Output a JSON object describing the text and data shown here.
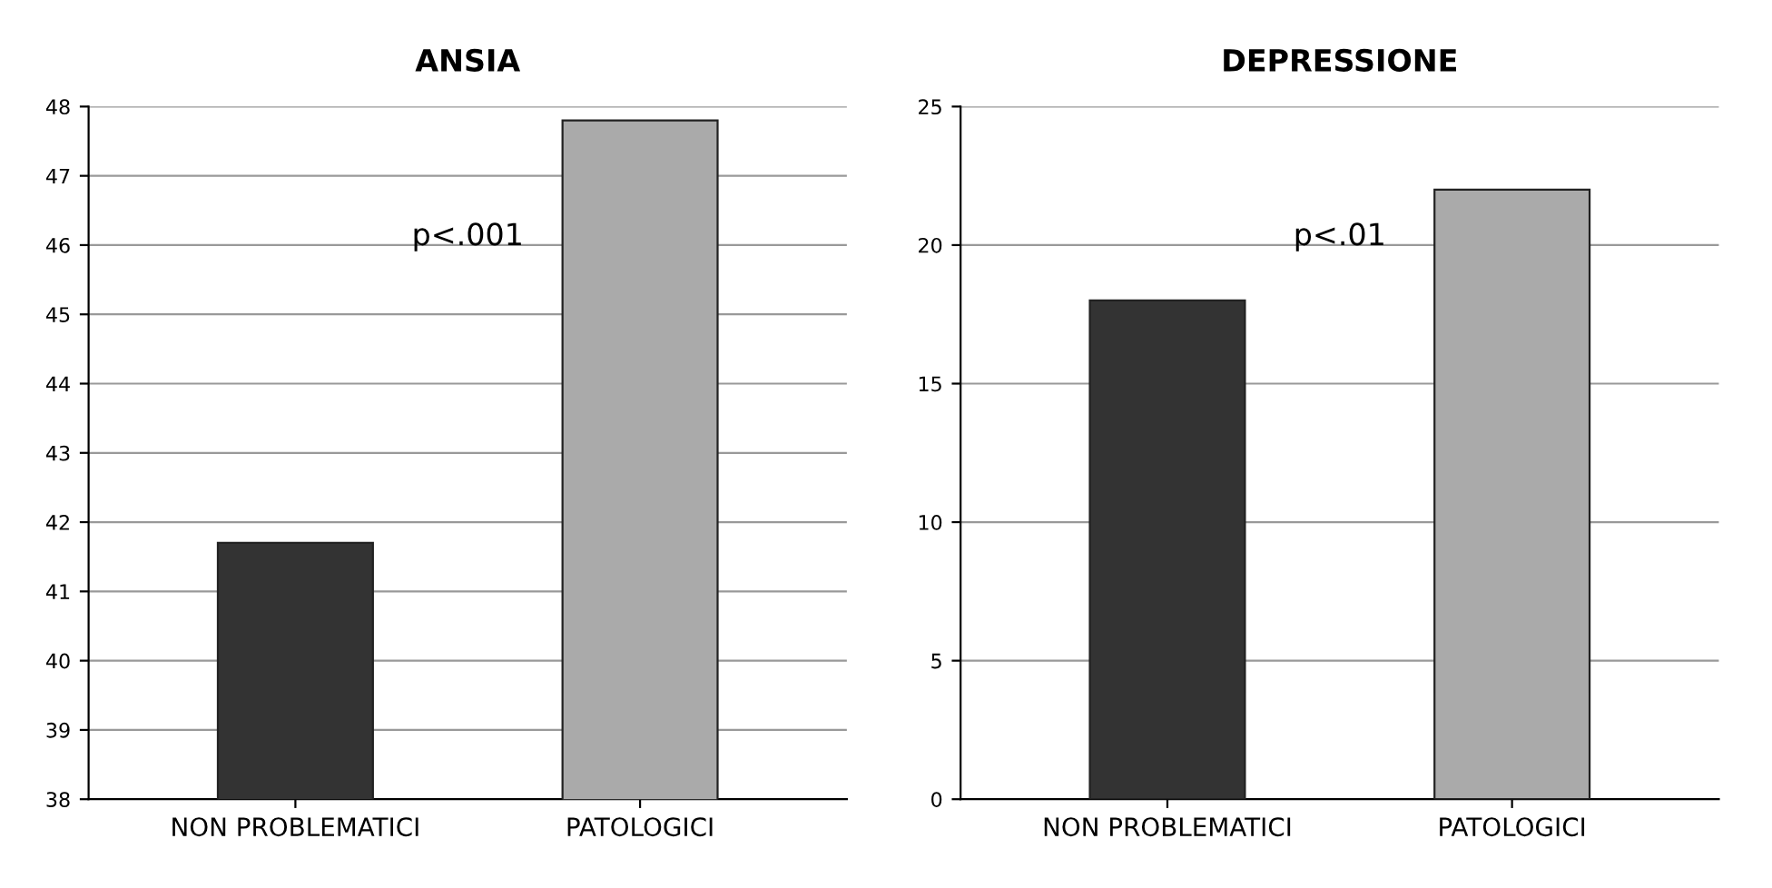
{
  "chart_data": [
    {
      "type": "bar",
      "title": "ANSIA",
      "categories": [
        "NON PROBLEMATICI",
        "PATOLOGICI"
      ],
      "values": [
        41.7,
        47.8
      ],
      "colors": [
        "#333333",
        "#aaaaaa"
      ],
      "ylim": [
        38,
        48
      ],
      "yticks": [
        38,
        39,
        40,
        41,
        42,
        43,
        44,
        45,
        46,
        47,
        48
      ],
      "grid": "y",
      "annotations": [
        "p<.001"
      ]
    },
    {
      "type": "bar",
      "title": "DEPRESSIONE",
      "categories": [
        "NON PROBLEMATICI",
        "PATOLOGICI"
      ],
      "values": [
        18,
        22
      ],
      "colors": [
        "#333333",
        "#aaaaaa"
      ],
      "ylim": [
        0,
        25
      ],
      "yticks": [
        0,
        5,
        10,
        15,
        20,
        25
      ],
      "grid": "y",
      "annotations": [
        "p<.01"
      ]
    }
  ]
}
